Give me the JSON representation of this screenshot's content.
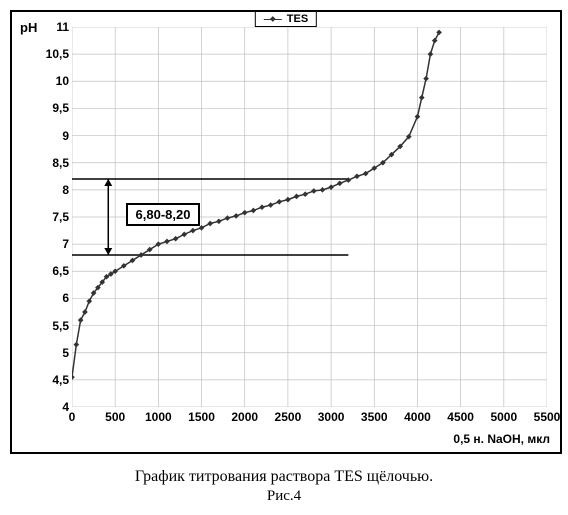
{
  "chart": {
    "type": "line",
    "series_name": "TES",
    "ylabel": "pH",
    "xlabel": "0,5 н. NaOH, мкл",
    "xlim": [
      0,
      5500
    ],
    "ylim": [
      4,
      11
    ],
    "ytick_step": 0.5,
    "xtick_step": 500,
    "background_color": "#ffffff",
    "grid_color": "#c0c0c0",
    "line_color": "#333333",
    "marker_color": "#333333",
    "marker_size": 4,
    "line_width": 1.5,
    "x": [
      0,
      50,
      100,
      150,
      200,
      250,
      300,
      350,
      400,
      450,
      500,
      600,
      700,
      800,
      900,
      1000,
      1100,
      1200,
      1300,
      1400,
      1500,
      1600,
      1700,
      1800,
      1900,
      2000,
      2100,
      2200,
      2300,
      2400,
      2500,
      2600,
      2700,
      2800,
      2900,
      3000,
      3100,
      3200,
      3300,
      3400,
      3500,
      3600,
      3700,
      3800,
      3900,
      4000,
      4050,
      4100,
      4150,
      4200,
      4250
    ],
    "y": [
      4.55,
      5.15,
      5.6,
      5.75,
      5.95,
      6.1,
      6.2,
      6.3,
      6.4,
      6.45,
      6.5,
      6.6,
      6.7,
      6.8,
      6.9,
      7.0,
      7.05,
      7.1,
      7.18,
      7.25,
      7.3,
      7.38,
      7.42,
      7.48,
      7.52,
      7.58,
      7.62,
      7.68,
      7.72,
      7.78,
      7.82,
      7.88,
      7.92,
      7.98,
      8.0,
      8.05,
      8.12,
      8.18,
      8.25,
      8.3,
      8.4,
      8.5,
      8.65,
      8.8,
      8.98,
      9.35,
      9.7,
      10.05,
      10.5,
      10.75,
      10.9
    ],
    "buffer_range_label": "6,80-8,20",
    "buffer_low": 6.8,
    "buffer_high": 8.2,
    "buffer_x": 3200,
    "range_box_x": 620,
    "range_box_y": 7.55
  },
  "caption": "График титрования раствора TES щёлочью.",
  "figure_label": "Рис.4"
}
